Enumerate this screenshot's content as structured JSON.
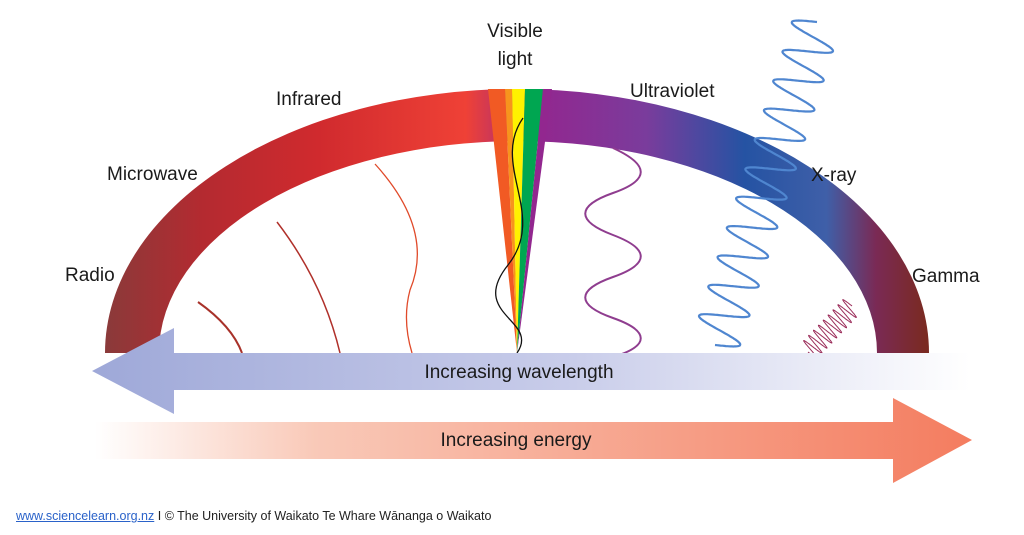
{
  "bands": {
    "radio": "Radio",
    "microwave": "Microwave",
    "infrared": "Infrared",
    "visible_line1": "Visible",
    "visible_line2": "light",
    "ultraviolet": "Ultraviolet",
    "xray": "X-ray",
    "gamma": "Gamma"
  },
  "arrows": {
    "wavelength": "Increasing wavelength",
    "energy": "Increasing energy"
  },
  "footer": {
    "link": "www.sciencelearn.org.nz",
    "separator": " I ",
    "credit": "© The University of Waikato Te Whare Wānanga o Waikato"
  },
  "colors": {
    "radio": "#8a3a3a",
    "microwave": "#c8232c",
    "infrared": "#ef4136",
    "ultraviolet": "#92278f",
    "xray": "#2553a3",
    "gamma": "#7a2a22",
    "wavelength_arrow": "#9ea8d8",
    "energy_arrow": "#f47c5f",
    "link": "#2a62c9"
  }
}
